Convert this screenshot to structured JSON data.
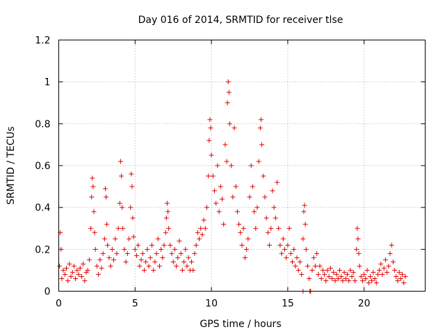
{
  "chart_data": {
    "type": "scatter",
    "title": "Day 016 of 2014, SRMTID for receiver tlse",
    "xlabel": "GPS time / hours",
    "ylabel": "SRMTID / TECUs",
    "xlim": [
      0,
      24
    ],
    "ylim": [
      0,
      1.2
    ],
    "xticks": [
      0,
      5,
      10,
      15,
      20
    ],
    "xtick_labels": [
      "0",
      "5",
      "10",
      "15",
      "20"
    ],
    "yticks": [
      0,
      0.2,
      0.4,
      0.6,
      0.8,
      1.0,
      1.2
    ],
    "ytick_labels": [
      "0",
      "0.2",
      "0.4",
      "0.6",
      "0.8",
      "1",
      "1.2"
    ],
    "grid": true,
    "series": [
      {
        "name": "SRMTID",
        "color": "#e00000",
        "marker": "plus",
        "points": [
          [
            0.05,
            0.12
          ],
          [
            0.1,
            0.28
          ],
          [
            0.15,
            0.2
          ],
          [
            0.2,
            0.06
          ],
          [
            0.3,
            0.1
          ],
          [
            0.4,
            0.08
          ],
          [
            0.5,
            0.11
          ],
          [
            0.6,
            0.05
          ],
          [
            0.7,
            0.13
          ],
          [
            0.8,
            0.07
          ],
          [
            0.9,
            0.09
          ],
          [
            1.0,
            0.12
          ],
          [
            1.1,
            0.06
          ],
          [
            1.2,
            0.1
          ],
          [
            1.3,
            0.08
          ],
          [
            1.4,
            0.11
          ],
          [
            1.5,
            0.07
          ],
          [
            1.6,
            0.13
          ],
          [
            1.7,
            0.05
          ],
          [
            1.8,
            0.09
          ],
          [
            1.9,
            0.1
          ],
          [
            2.0,
            0.15
          ],
          [
            2.1,
            0.3
          ],
          [
            2.15,
            0.45
          ],
          [
            2.2,
            0.54
          ],
          [
            2.25,
            0.5
          ],
          [
            2.3,
            0.38
          ],
          [
            2.35,
            0.28
          ],
          [
            2.4,
            0.2
          ],
          [
            2.5,
            0.12
          ],
          [
            2.6,
            0.08
          ],
          [
            2.7,
            0.15
          ],
          [
            2.8,
            0.11
          ],
          [
            2.9,
            0.18
          ],
          [
            3.0,
            0.25
          ],
          [
            3.05,
            0.49
          ],
          [
            3.1,
            0.45
          ],
          [
            3.15,
            0.32
          ],
          [
            3.2,
            0.22
          ],
          [
            3.3,
            0.16
          ],
          [
            3.4,
            0.12
          ],
          [
            3.5,
            0.2
          ],
          [
            3.6,
            0.15
          ],
          [
            3.7,
            0.25
          ],
          [
            3.8,
            0.18
          ],
          [
            3.9,
            0.3
          ],
          [
            4.0,
            0.42
          ],
          [
            4.05,
            0.62
          ],
          [
            4.1,
            0.55
          ],
          [
            4.15,
            0.4
          ],
          [
            4.2,
            0.3
          ],
          [
            4.3,
            0.2
          ],
          [
            4.4,
            0.14
          ],
          [
            4.5,
            0.18
          ],
          [
            4.6,
            0.25
          ],
          [
            4.7,
            0.4
          ],
          [
            4.75,
            0.56
          ],
          [
            4.8,
            0.5
          ],
          [
            4.85,
            0.35
          ],
          [
            4.9,
            0.26
          ],
          [
            5.0,
            0.2
          ],
          [
            5.1,
            0.17
          ],
          [
            5.2,
            0.22
          ],
          [
            5.3,
            0.12
          ],
          [
            5.4,
            0.15
          ],
          [
            5.5,
            0.18
          ],
          [
            5.6,
            0.1
          ],
          [
            5.7,
            0.14
          ],
          [
            5.8,
            0.2
          ],
          [
            5.9,
            0.12
          ],
          [
            6.0,
            0.16
          ],
          [
            6.1,
            0.22
          ],
          [
            6.2,
            0.1
          ],
          [
            6.3,
            0.14
          ],
          [
            6.4,
            0.18
          ],
          [
            6.5,
            0.25
          ],
          [
            6.6,
            0.12
          ],
          [
            6.7,
            0.2
          ],
          [
            6.8,
            0.16
          ],
          [
            6.9,
            0.22
          ],
          [
            7.0,
            0.28
          ],
          [
            7.05,
            0.35
          ],
          [
            7.1,
            0.42
          ],
          [
            7.15,
            0.38
          ],
          [
            7.2,
            0.3
          ],
          [
            7.3,
            0.22
          ],
          [
            7.4,
            0.18
          ],
          [
            7.5,
            0.14
          ],
          [
            7.6,
            0.2
          ],
          [
            7.7,
            0.12
          ],
          [
            7.8,
            0.16
          ],
          [
            7.9,
            0.24
          ],
          [
            8.0,
            0.18
          ],
          [
            8.1,
            0.1
          ],
          [
            8.2,
            0.14
          ],
          [
            8.3,
            0.2
          ],
          [
            8.4,
            0.12
          ],
          [
            8.5,
            0.16
          ],
          [
            8.6,
            0.1
          ],
          [
            8.7,
            0.14
          ],
          [
            8.8,
            0.1
          ],
          [
            8.9,
            0.18
          ],
          [
            9.0,
            0.22
          ],
          [
            9.1,
            0.28
          ],
          [
            9.2,
            0.25
          ],
          [
            9.3,
            0.3
          ],
          [
            9.4,
            0.27
          ],
          [
            9.5,
            0.34
          ],
          [
            9.6,
            0.3
          ],
          [
            9.7,
            0.4
          ],
          [
            9.8,
            0.55
          ],
          [
            9.85,
            0.72
          ],
          [
            9.9,
            0.82
          ],
          [
            9.95,
            0.78
          ],
          [
            10.0,
            0.65
          ],
          [
            10.1,
            0.55
          ],
          [
            10.2,
            0.48
          ],
          [
            10.3,
            0.42
          ],
          [
            10.4,
            0.6
          ],
          [
            10.5,
            0.38
          ],
          [
            10.6,
            0.5
          ],
          [
            10.7,
            0.44
          ],
          [
            10.8,
            0.32
          ],
          [
            10.9,
            0.7
          ],
          [
            11.0,
            0.62
          ],
          [
            11.05,
            0.9
          ],
          [
            11.1,
            1.0
          ],
          [
            11.15,
            0.95
          ],
          [
            11.2,
            0.8
          ],
          [
            11.3,
            0.6
          ],
          [
            11.4,
            0.45
          ],
          [
            11.5,
            0.78
          ],
          [
            11.6,
            0.5
          ],
          [
            11.7,
            0.38
          ],
          [
            11.8,
            0.32
          ],
          [
            11.9,
            0.28
          ],
          [
            12.0,
            0.22
          ],
          [
            12.1,
            0.3
          ],
          [
            12.2,
            0.16
          ],
          [
            12.3,
            0.2
          ],
          [
            12.4,
            0.25
          ],
          [
            12.5,
            0.45
          ],
          [
            12.6,
            0.6
          ],
          [
            12.7,
            0.5
          ],
          [
            12.8,
            0.38
          ],
          [
            12.9,
            0.3
          ],
          [
            13.0,
            0.4
          ],
          [
            13.1,
            0.62
          ],
          [
            13.2,
            0.78
          ],
          [
            13.25,
            0.82
          ],
          [
            13.3,
            0.7
          ],
          [
            13.4,
            0.55
          ],
          [
            13.5,
            0.45
          ],
          [
            13.6,
            0.35
          ],
          [
            13.7,
            0.28
          ],
          [
            13.8,
            0.22
          ],
          [
            13.9,
            0.3
          ],
          [
            14.0,
            0.48
          ],
          [
            14.1,
            0.4
          ],
          [
            14.2,
            0.35
          ],
          [
            14.3,
            0.52
          ],
          [
            14.4,
            0.3
          ],
          [
            14.5,
            0.22
          ],
          [
            14.6,
            0.18
          ],
          [
            14.7,
            0.25
          ],
          [
            14.8,
            0.2
          ],
          [
            14.9,
            0.16
          ],
          [
            15.0,
            0.22
          ],
          [
            15.1,
            0.3
          ],
          [
            15.2,
            0.18
          ],
          [
            15.3,
            0.14
          ],
          [
            15.4,
            0.2
          ],
          [
            15.5,
            0.12
          ],
          [
            15.6,
            0.16
          ],
          [
            15.7,
            0.1
          ],
          [
            15.8,
            0.14
          ],
          [
            15.9,
            0.08
          ],
          [
            16.0,
            0.25
          ],
          [
            16.05,
            0.38
          ],
          [
            16.1,
            0.41
          ],
          [
            16.15,
            0.32
          ],
          [
            16.2,
            0.2
          ],
          [
            16.3,
            0.12
          ],
          [
            16.4,
            0.06
          ],
          [
            16.6,
            0.1
          ],
          [
            16.7,
            0.16
          ],
          [
            16.8,
            0.12
          ],
          [
            16.9,
            0.18
          ],
          [
            17.0,
            0.08
          ],
          [
            17.1,
            0.12
          ],
          [
            17.2,
            0.06
          ],
          [
            17.3,
            0.1
          ],
          [
            17.4,
            0.08
          ],
          [
            17.5,
            0.05
          ],
          [
            17.6,
            0.1
          ],
          [
            17.7,
            0.07
          ],
          [
            17.8,
            0.11
          ],
          [
            17.9,
            0.06
          ],
          [
            18.0,
            0.09
          ],
          [
            18.1,
            0.05
          ],
          [
            18.2,
            0.08
          ],
          [
            18.3,
            0.06
          ],
          [
            18.4,
            0.1
          ],
          [
            18.5,
            0.07
          ],
          [
            18.6,
            0.05
          ],
          [
            18.7,
            0.09
          ],
          [
            18.8,
            0.06
          ],
          [
            18.9,
            0.08
          ],
          [
            19.0,
            0.05
          ],
          [
            19.1,
            0.1
          ],
          [
            19.2,
            0.07
          ],
          [
            19.3,
            0.09
          ],
          [
            19.4,
            0.05
          ],
          [
            19.5,
            0.2
          ],
          [
            19.55,
            0.3
          ],
          [
            19.6,
            0.25
          ],
          [
            19.65,
            0.18
          ],
          [
            19.7,
            0.12
          ],
          [
            19.8,
            0.07
          ],
          [
            19.9,
            0.05
          ],
          [
            20.0,
            0.08
          ],
          [
            20.1,
            0.06
          ],
          [
            20.2,
            0.1
          ],
          [
            20.3,
            0.04
          ],
          [
            20.4,
            0.07
          ],
          [
            20.5,
            0.05
          ],
          [
            20.6,
            0.09
          ],
          [
            20.7,
            0.06
          ],
          [
            20.8,
            0.04
          ],
          [
            20.9,
            0.08
          ],
          [
            21.0,
            0.1
          ],
          [
            21.1,
            0.13
          ],
          [
            21.2,
            0.08
          ],
          [
            21.3,
            0.11
          ],
          [
            21.4,
            0.15
          ],
          [
            21.5,
            0.09
          ],
          [
            21.6,
            0.12
          ],
          [
            21.7,
            0.18
          ],
          [
            21.8,
            0.22
          ],
          [
            21.9,
            0.14
          ],
          [
            22.0,
            0.1
          ],
          [
            22.1,
            0.07
          ],
          [
            22.2,
            0.05
          ],
          [
            22.3,
            0.09
          ],
          [
            22.4,
            0.06
          ],
          [
            22.5,
            0.08
          ],
          [
            22.6,
            0.04
          ],
          [
            22.7,
            0.07
          ],
          [
            16.0,
            0.0
          ],
          [
            16.45,
            0.0
          ],
          [
            16.5,
            0.0
          ]
        ]
      }
    ]
  }
}
